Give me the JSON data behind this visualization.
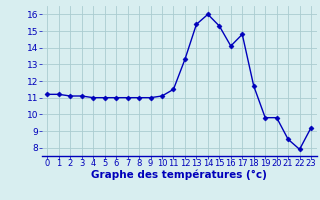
{
  "hours": [
    0,
    1,
    2,
    3,
    4,
    5,
    6,
    7,
    8,
    9,
    10,
    11,
    12,
    13,
    14,
    15,
    16,
    17,
    18,
    19,
    20,
    21,
    22,
    23
  ],
  "temps": [
    11.2,
    11.2,
    11.1,
    11.1,
    11.0,
    11.0,
    11.0,
    11.0,
    11.0,
    11.0,
    11.1,
    11.5,
    13.3,
    15.4,
    16.0,
    15.3,
    14.1,
    14.8,
    11.7,
    9.8,
    9.8,
    8.5,
    7.9,
    9.2
  ],
  "line_color": "#0000bb",
  "marker": "D",
  "marker_size": 2.5,
  "bg_color": "#d8eef0",
  "grid_color": "#aaccd0",
  "xlabel": "Graphe des températures (°c)",
  "xlabel_color": "#0000bb",
  "tick_color": "#0000bb",
  "xlim": [
    -0.5,
    23.5
  ],
  "ylim": [
    7.5,
    16.5
  ],
  "yticks": [
    8,
    9,
    10,
    11,
    12,
    13,
    14,
    15,
    16
  ],
  "xticks": [
    0,
    1,
    2,
    3,
    4,
    5,
    6,
    7,
    8,
    9,
    10,
    11,
    12,
    13,
    14,
    15,
    16,
    17,
    18,
    19,
    20,
    21,
    22,
    23
  ],
  "xtick_fontsize": 6.0,
  "ytick_fontsize": 6.5,
  "xlabel_fontsize": 7.5
}
